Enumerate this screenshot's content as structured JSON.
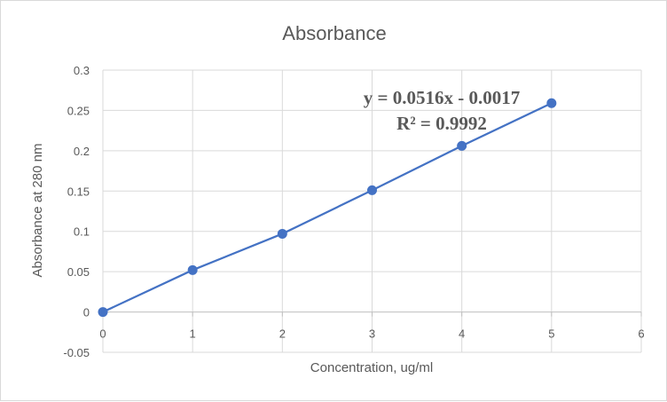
{
  "chart_data": {
    "type": "scatter",
    "title": "Absorbance",
    "xlabel": "Concentration, ug/ml",
    "ylabel": "Absorbance at 280 nm",
    "xlim": [
      0,
      6
    ],
    "ylim": [
      -0.05,
      0.3
    ],
    "x_ticks": [
      "0",
      "1",
      "2",
      "3",
      "4",
      "5",
      "6"
    ],
    "y_ticks": [
      "-0.05",
      "0",
      "0.05",
      "0.1",
      "0.15",
      "0.2",
      "0.25",
      "0.3"
    ],
    "grid": true,
    "series": [
      {
        "x": [
          0,
          1,
          2,
          3,
          4,
          5
        ],
        "y": [
          0,
          0.052,
          0.097,
          0.151,
          0.206,
          0.259
        ],
        "color": "#4472c4",
        "marker": "circle",
        "line": true
      }
    ],
    "trendline": {
      "equation": "y = 0.0516x - 0.0017",
      "r_squared": "R² = 0.9992"
    }
  }
}
